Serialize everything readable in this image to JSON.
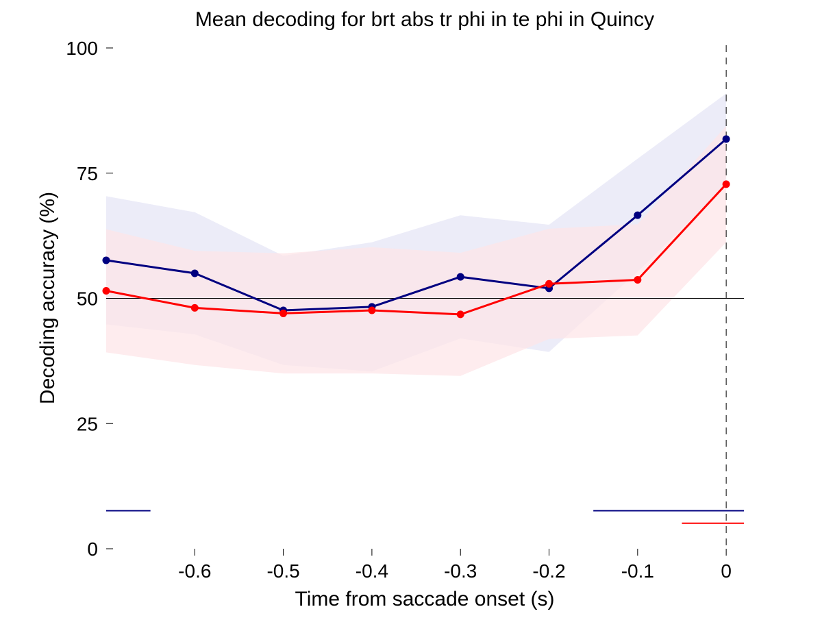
{
  "chart_data": {
    "type": "line",
    "title": "Mean decoding for brt abs tr phi in te phi in  Quincy",
    "xlabel": "Time from saccade onset (s)",
    "ylabel": "Decoding accuracy (%)",
    "xlim": [
      -0.7,
      0.02
    ],
    "ylim": [
      0,
      100
    ],
    "x_ticks": [
      -0.6,
      -0.5,
      -0.4,
      -0.3,
      -0.2,
      -0.1,
      0
    ],
    "x_tick_labels": [
      "-0.6",
      "-0.5",
      "-0.4",
      "-0.3",
      "-0.2",
      "-0.1",
      "0"
    ],
    "y_ticks": [
      0,
      25,
      50,
      75,
      100
    ],
    "y_tick_labels": [
      "0",
      "25",
      "50",
      "75",
      "100"
    ],
    "grid": false,
    "chance_level": 50,
    "event_marker_x": 0,
    "x": [
      -0.7,
      -0.6,
      -0.5,
      -0.4,
      -0.3,
      -0.2,
      -0.1,
      0.0
    ],
    "series": [
      {
        "color": "#000080",
        "band_color": "#e6e6f5",
        "values": [
          57.6,
          55.0,
          47.6,
          48.3,
          54.3,
          52.0,
          66.6,
          81.8
        ],
        "upper": [
          70.4,
          67.2,
          58.5,
          61.2,
          66.6,
          64.7,
          77.9,
          90.9
        ],
        "lower": [
          44.8,
          42.8,
          36.7,
          35.4,
          42.0,
          39.3,
          55.3,
          72.7
        ],
        "significance_spans": [
          [
            -0.7,
            -0.65
          ],
          [
            -0.15,
            0.02
          ]
        ],
        "significance_y": 7.6
      },
      {
        "color": "#ff0000",
        "band_color": "#fde6e8",
        "values": [
          51.5,
          48.1,
          47.0,
          47.6,
          46.8,
          52.9,
          53.7,
          72.8
        ],
        "upper": [
          63.8,
          59.5,
          59.0,
          60.2,
          59.1,
          63.9,
          64.8,
          84.4
        ],
        "lower": [
          39.2,
          36.7,
          35.0,
          35.0,
          34.5,
          41.9,
          42.6,
          61.2
        ],
        "significance_spans": [
          [
            -0.05,
            0.02
          ]
        ],
        "significance_y": 5.1
      }
    ]
  }
}
